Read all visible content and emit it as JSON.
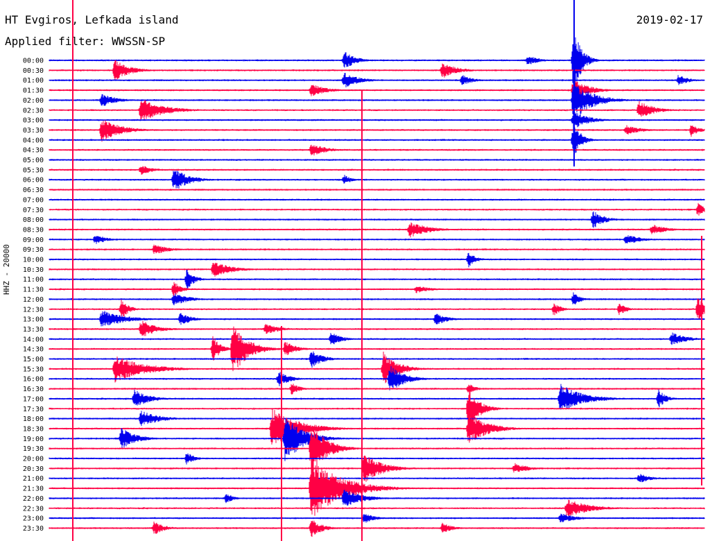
{
  "header": {
    "station": "HT Evgiros, Lefkada island",
    "filter": "Applied filter: WWSSN-SP",
    "date": "2019-02-17"
  },
  "channel_label": "HHZ - 20000",
  "colors": {
    "trace_a": "#0000ee",
    "trace_b": "#ff0044",
    "text": "#000000"
  },
  "chart_data": {
    "type": "helicorder",
    "title": "HT Evgiros, Lefkada island",
    "subtitle": "Applied filter: WWSSN-SP",
    "date": "2019-02-17",
    "ylabel": "HHZ - 20000",
    "row_labels": [
      "00:00",
      "00:30",
      "01:00",
      "01:30",
      "02:00",
      "02:30",
      "03:00",
      "03:30",
      "04:00",
      "04:30",
      "05:00",
      "05:30",
      "06:00",
      "06:30",
      "07:00",
      "07:30",
      "08:00",
      "08:30",
      "09:00",
      "09:30",
      "10:00",
      "10:30",
      "11:00",
      "11:30",
      "12:00",
      "12:30",
      "13:00",
      "13:30",
      "14:00",
      "14:30",
      "15:00",
      "15:30",
      "16:00",
      "16:30",
      "17:00",
      "17:30",
      "18:00",
      "18:30",
      "19:00",
      "19:30",
      "20:00",
      "20:30",
      "21:00",
      "21:30",
      "22:00",
      "22:30",
      "23:00",
      "23:30"
    ],
    "row_minutes": 30,
    "row_colors": [
      "blue",
      "red"
    ],
    "events": [
      {
        "row": 0,
        "t": 0.45,
        "amp": 14,
        "dur": 0.03
      },
      {
        "row": 0,
        "t": 0.73,
        "amp": 8,
        "dur": 0.03
      },
      {
        "row": 0,
        "t": 0.8,
        "amp": 55,
        "dur": 0.02
      },
      {
        "row": 1,
        "t": 0.1,
        "amp": 16,
        "dur": 0.04
      },
      {
        "row": 1,
        "t": 0.6,
        "amp": 12,
        "dur": 0.04
      },
      {
        "row": 2,
        "t": 0.45,
        "amp": 12,
        "dur": 0.04
      },
      {
        "row": 2,
        "t": 0.63,
        "amp": 8,
        "dur": 0.03
      },
      {
        "row": 2,
        "t": 0.96,
        "amp": 8,
        "dur": 0.03
      },
      {
        "row": 3,
        "t": 0.4,
        "amp": 10,
        "dur": 0.04
      },
      {
        "row": 3,
        "t": 0.8,
        "amp": 18,
        "dur": 0.04
      },
      {
        "row": 4,
        "t": 0.08,
        "amp": 10,
        "dur": 0.04
      },
      {
        "row": 4,
        "t": 0.8,
        "amp": 30,
        "dur": 0.05
      },
      {
        "row": 5,
        "t": 0.14,
        "amp": 18,
        "dur": 0.06
      },
      {
        "row": 5,
        "t": 0.9,
        "amp": 14,
        "dur": 0.04
      },
      {
        "row": 6,
        "t": 0.8,
        "amp": 14,
        "dur": 0.04
      },
      {
        "row": 7,
        "t": 0.08,
        "amp": 18,
        "dur": 0.05
      },
      {
        "row": 7,
        "t": 0.88,
        "amp": 8,
        "dur": 0.04
      },
      {
        "row": 7,
        "t": 0.98,
        "amp": 10,
        "dur": 0.02
      },
      {
        "row": 8,
        "t": 0.8,
        "amp": 28,
        "dur": 0.02
      },
      {
        "row": 9,
        "t": 0.4,
        "amp": 10,
        "dur": 0.04
      },
      {
        "row": 11,
        "t": 0.14,
        "amp": 8,
        "dur": 0.03
      },
      {
        "row": 12,
        "t": 0.19,
        "amp": 18,
        "dur": 0.04
      },
      {
        "row": 12,
        "t": 0.45,
        "amp": 8,
        "dur": 0.02
      },
      {
        "row": 15,
        "t": 0.99,
        "amp": 10,
        "dur": 0.02
      },
      {
        "row": 16,
        "t": 0.83,
        "amp": 14,
        "dur": 0.03
      },
      {
        "row": 17,
        "t": 0.55,
        "amp": 12,
        "dur": 0.05
      },
      {
        "row": 17,
        "t": 0.92,
        "amp": 8,
        "dur": 0.04
      },
      {
        "row": 18,
        "t": 0.07,
        "amp": 8,
        "dur": 0.03
      },
      {
        "row": 18,
        "t": 0.88,
        "amp": 8,
        "dur": 0.04
      },
      {
        "row": 19,
        "t": 0.16,
        "amp": 8,
        "dur": 0.04
      },
      {
        "row": 20,
        "t": 0.64,
        "amp": 12,
        "dur": 0.02
      },
      {
        "row": 21,
        "t": 0.25,
        "amp": 12,
        "dur": 0.05
      },
      {
        "row": 22,
        "t": 0.21,
        "amp": 16,
        "dur": 0.02
      },
      {
        "row": 23,
        "t": 0.19,
        "amp": 12,
        "dur": 0.02
      },
      {
        "row": 23,
        "t": 0.56,
        "amp": 6,
        "dur": 0.04
      },
      {
        "row": 24,
        "t": 0.19,
        "amp": 10,
        "dur": 0.04
      },
      {
        "row": 24,
        "t": 0.8,
        "amp": 10,
        "dur": 0.02
      },
      {
        "row": 25,
        "t": 0.11,
        "amp": 16,
        "dur": 0.02
      },
      {
        "row": 25,
        "t": 0.77,
        "amp": 10,
        "dur": 0.02
      },
      {
        "row": 25,
        "t": 0.87,
        "amp": 10,
        "dur": 0.02
      },
      {
        "row": 25,
        "t": 0.99,
        "amp": 20,
        "dur": 0.02
      },
      {
        "row": 26,
        "t": 0.08,
        "amp": 14,
        "dur": 0.06
      },
      {
        "row": 26,
        "t": 0.2,
        "amp": 10,
        "dur": 0.03
      },
      {
        "row": 26,
        "t": 0.59,
        "amp": 10,
        "dur": 0.03
      },
      {
        "row": 27,
        "t": 0.14,
        "amp": 14,
        "dur": 0.04
      },
      {
        "row": 27,
        "t": 0.33,
        "amp": 8,
        "dur": 0.04
      },
      {
        "row": 28,
        "t": 0.43,
        "amp": 10,
        "dur": 0.03
      },
      {
        "row": 28,
        "t": 0.95,
        "amp": 10,
        "dur": 0.04
      },
      {
        "row": 29,
        "t": 0.25,
        "amp": 20,
        "dur": 0.02
      },
      {
        "row": 29,
        "t": 0.28,
        "amp": 40,
        "dur": 0.04
      },
      {
        "row": 29,
        "t": 0.36,
        "amp": 12,
        "dur": 0.03
      },
      {
        "row": 30,
        "t": 0.4,
        "amp": 14,
        "dur": 0.03
      },
      {
        "row": 31,
        "t": 0.1,
        "amp": 20,
        "dur": 0.08
      },
      {
        "row": 31,
        "t": 0.51,
        "amp": 25,
        "dur": 0.04
      },
      {
        "row": 32,
        "t": 0.35,
        "amp": 12,
        "dur": 0.03
      },
      {
        "row": 32,
        "t": 0.52,
        "amp": 20,
        "dur": 0.04
      },
      {
        "row": 33,
        "t": 0.37,
        "amp": 10,
        "dur": 0.02
      },
      {
        "row": 33,
        "t": 0.64,
        "amp": 8,
        "dur": 0.02
      },
      {
        "row": 34,
        "t": 0.13,
        "amp": 14,
        "dur": 0.04
      },
      {
        "row": 34,
        "t": 0.78,
        "amp": 22,
        "dur": 0.06
      },
      {
        "row": 34,
        "t": 0.93,
        "amp": 14,
        "dur": 0.02
      },
      {
        "row": 35,
        "t": 0.64,
        "amp": 30,
        "dur": 0.03
      },
      {
        "row": 36,
        "t": 0.14,
        "amp": 12,
        "dur": 0.05
      },
      {
        "row": 37,
        "t": 0.34,
        "amp": 30,
        "dur": 0.07
      },
      {
        "row": 37,
        "t": 0.64,
        "amp": 25,
        "dur": 0.05
      },
      {
        "row": 38,
        "t": 0.11,
        "amp": 16,
        "dur": 0.04
      },
      {
        "row": 38,
        "t": 0.36,
        "amp": 35,
        "dur": 0.05
      },
      {
        "row": 39,
        "t": 0.4,
        "amp": 40,
        "dur": 0.04
      },
      {
        "row": 40,
        "t": 0.21,
        "amp": 10,
        "dur": 0.02
      },
      {
        "row": 41,
        "t": 0.48,
        "amp": 22,
        "dur": 0.05
      },
      {
        "row": 41,
        "t": 0.71,
        "amp": 8,
        "dur": 0.04
      },
      {
        "row": 42,
        "t": 0.9,
        "amp": 8,
        "dur": 0.03
      },
      {
        "row": 43,
        "t": 0.4,
        "amp": 45,
        "dur": 0.08
      },
      {
        "row": 44,
        "t": 0.27,
        "amp": 8,
        "dur": 0.02
      },
      {
        "row": 44,
        "t": 0.45,
        "amp": 14,
        "dur": 0.05
      },
      {
        "row": 45,
        "t": 0.79,
        "amp": 14,
        "dur": 0.06
      },
      {
        "row": 46,
        "t": 0.48,
        "amp": 8,
        "dur": 0.03
      },
      {
        "row": 46,
        "t": 0.78,
        "amp": 8,
        "dur": 0.04
      },
      {
        "row": 47,
        "t": 0.16,
        "amp": 10,
        "dur": 0.03
      },
      {
        "row": 47,
        "t": 0.4,
        "amp": 14,
        "dur": 0.03
      },
      {
        "row": 47,
        "t": 0.6,
        "amp": 8,
        "dur": 0.03
      }
    ]
  }
}
